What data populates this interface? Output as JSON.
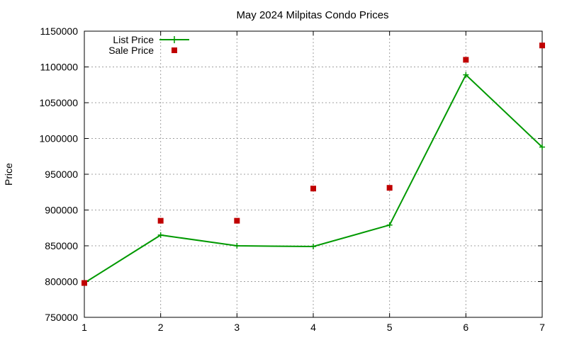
{
  "chart_data": {
    "type": "line",
    "title": "May 2024 Milpitas Condo Prices",
    "xlabel": "",
    "ylabel": "Price",
    "x": [
      1,
      2,
      3,
      4,
      5,
      6,
      7
    ],
    "xlim": [
      1,
      7
    ],
    "ylim": [
      750000,
      1150000
    ],
    "yticks": [
      "750000",
      "800000",
      "850000",
      "900000",
      "950000",
      "1000000",
      "1050000",
      "1100000",
      "1150000"
    ],
    "xticks": [
      "1",
      "2",
      "3",
      "4",
      "5",
      "6",
      "7"
    ],
    "grid": true,
    "legend_position": "top-left",
    "series": [
      {
        "name": "List Price",
        "style": "line-with-plus-markers",
        "color": "#009900",
        "values": [
          798000,
          865000,
          850000,
          849000,
          879000,
          1089000,
          988000
        ]
      },
      {
        "name": "Sale Price",
        "style": "square-points",
        "color": "#c00000",
        "values": [
          798000,
          885000,
          885000,
          930000,
          931000,
          1110000,
          1130000
        ]
      }
    ]
  }
}
